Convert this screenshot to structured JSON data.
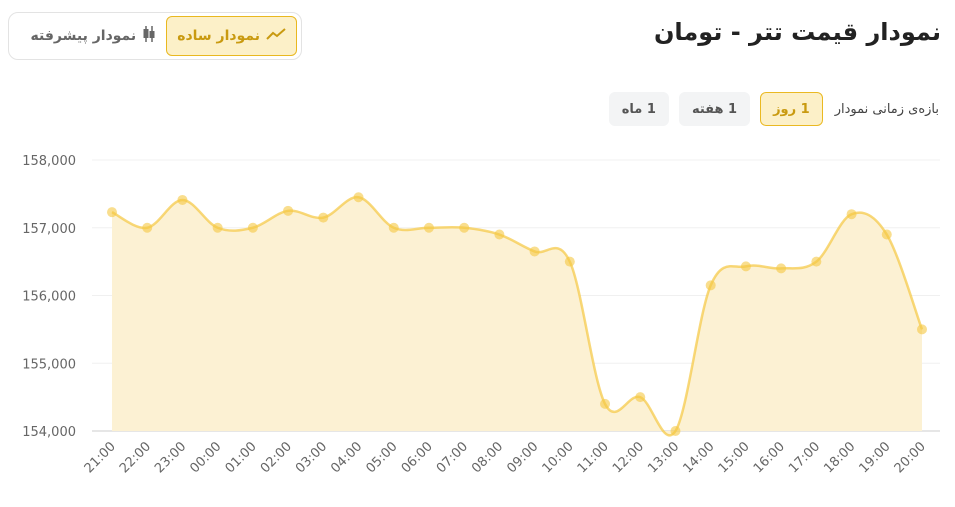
{
  "header": {
    "title": "نمودار قیمت تتر - تومان"
  },
  "chart_toggle": {
    "simple": "نمودار ساده",
    "advanced": "نمودار پیشرفته",
    "active": "simple"
  },
  "range": {
    "label": "بازه‌ی زمانی نمودار",
    "options": [
      "1 روز",
      "1 هفته",
      "1 ماه"
    ],
    "active": "1 روز"
  },
  "colors": {
    "accent": "#f5c842",
    "fill": "#fcf1d3"
  },
  "chart_data": {
    "type": "area",
    "x": [
      "21:00",
      "22:00",
      "23:00",
      "00:00",
      "01:00",
      "02:00",
      "03:00",
      "04:00",
      "05:00",
      "06:00",
      "07:00",
      "08:00",
      "09:00",
      "10:00",
      "11:00",
      "12:00",
      "13:00",
      "14:00",
      "15:00",
      "16:00",
      "17:00",
      "18:00",
      "19:00",
      "20:00"
    ],
    "values": [
      157230,
      157000,
      157410,
      157000,
      157000,
      157250,
      157150,
      157450,
      157000,
      157000,
      157000,
      156900,
      156650,
      156500,
      154400,
      154500,
      154000,
      156150,
      156430,
      156400,
      156500,
      157200,
      156900,
      155500
    ],
    "yticks": [
      "154,000",
      "155,000",
      "156,000",
      "157,000",
      "158,000"
    ],
    "ylim": [
      154000,
      158000
    ],
    "grid": true
  }
}
